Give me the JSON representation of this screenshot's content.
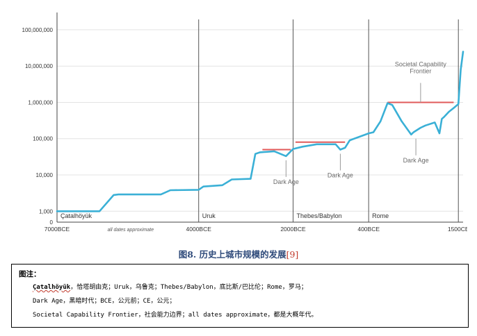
{
  "chart_data": {
    "type": "line",
    "title": "",
    "xlabel": "",
    "ylabel": "",
    "y_scale": "log",
    "ylim": [
      500,
      300000000
    ],
    "y_ticks": [
      {
        "value": 1000,
        "label": "1,000"
      },
      {
        "value": 10000,
        "label": "10,000"
      },
      {
        "value": 100000,
        "label": "100,000"
      },
      {
        "value": 1000000,
        "label": "1,000,000"
      },
      {
        "value": 10000000,
        "label": "10,000,000"
      },
      {
        "value": 100000000,
        "label": "100,000,000"
      }
    ],
    "y_zero_label": "0",
    "x_ticks": [
      {
        "value": -7000,
        "label": "7000BCE"
      },
      {
        "value": -4000,
        "label": "4000BCE"
      },
      {
        "value": -2000,
        "label": "2000BCE"
      },
      {
        "value": -400,
        "label": "400BCE"
      },
      {
        "value": 1500,
        "label": "1500CE"
      }
    ],
    "x_note": "all dates approximate",
    "grid": true,
    "series_color": "#3ab0d6",
    "frontier_color": "#e05a5a",
    "series": [
      {
        "x": [
          -7000,
          -6100,
          -5800,
          -5700,
          -5600,
          -4800,
          -4600,
          -4000,
          -3900,
          -3500,
          -3300,
          -2900,
          -2800,
          -2700,
          -2400,
          -2150,
          -2000,
          -1800,
          -1500,
          -1100,
          -1000,
          -900,
          -800,
          -400,
          -300,
          -150,
          0,
          100,
          300,
          500,
          550,
          700,
          800,
          1000,
          1100,
          1150,
          1200,
          1300,
          1400,
          1500,
          1550,
          1600
        ],
        "y": [
          1000,
          1000,
          2800,
          2900,
          2900,
          2900,
          3800,
          3900,
          4800,
          5200,
          7500,
          7800,
          38000,
          42000,
          45000,
          33000,
          52000,
          60000,
          70000,
          70000,
          50000,
          56000,
          90000,
          140000,
          150000,
          300000,
          950000,
          850000,
          300000,
          130000,
          150000,
          200000,
          230000,
          280000,
          140000,
          350000,
          400000,
          550000,
          700000,
          900000,
          8000000,
          25000000
        ]
      }
    ],
    "frontier_segments": [
      {
        "x": [
          -2650,
          -2050
        ],
        "y": 50000
      },
      {
        "x": [
          -1950,
          -900
        ],
        "y": 80000
      },
      {
        "x": [
          0,
          1400
        ],
        "y": 1000000
      }
    ],
    "eras": [
      {
        "x": -7000,
        "label": "Çatalhöyük"
      },
      {
        "x": -4000,
        "label": "Uruk"
      },
      {
        "x": -2000,
        "label": "Thebes/Babylon"
      },
      {
        "x": -400,
        "label": "Rome"
      },
      {
        "x": 1500,
        "label": ""
      }
    ],
    "annotations": [
      {
        "x": -2150,
        "y": 33000,
        "label": "Dark Age"
      },
      {
        "x": -1000,
        "y": 50000,
        "label": "Dark Age"
      },
      {
        "x": 600,
        "y": 130000,
        "label": "Dark Age"
      },
      {
        "x": 700,
        "y": 1000000,
        "label": "Societal Capability\nFrontier"
      }
    ]
  },
  "caption": {
    "text": "图8. 历史上城市规模的发展",
    "ref": "[9]"
  },
  "notes": {
    "title": "图注：",
    "line1_catal": "Çatalhöyük",
    "line1_rest": "，恰塔胡由克；Uruk，乌鲁克；Thebes/Babylon，底比斯/巴比伦；Rome，罗马；",
    "line2": "Dark Age，黑暗时代；BCE，公元前；CE，公元；",
    "line3": "Societal Capability Frontier，社会能力边界；all dates approximate，都是大概年代。"
  }
}
